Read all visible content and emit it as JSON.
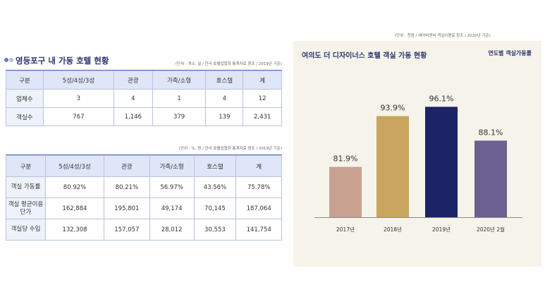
{
  "top_note": "(단위 : 천원 / 에어비앤비 객실이용료 참조 / 2020년 기준)",
  "left": {
    "title": "영등포구 내 가동 호텔 현황",
    "table1": {
      "note": "(단위 : 개소, 실 / 한국 호텔업협회 통계자료 참조 / 2019년 기준)",
      "headers": [
        "구분",
        "5성/4성/3성",
        "관광",
        "가족/소형",
        "호스텔",
        "계"
      ],
      "rows": [
        [
          "업체수",
          "3",
          "4",
          "1",
          "4",
          "12"
        ],
        [
          "객실수",
          "767",
          "1,146",
          "379",
          "139",
          "2,431"
        ]
      ]
    },
    "table2": {
      "note": "(단위 : %, 원 / 한국 호텔업협회 통계자료 참조 / 2019년 기준)",
      "headers": [
        "구분",
        "5성/4성/3성",
        "관광",
        "가족/소형",
        "호스텔",
        "계"
      ],
      "rows": [
        [
          "객실 가동률",
          "80.92%",
          "80.21%",
          "56.97%",
          "43.56%",
          "75.78%"
        ],
        [
          "객실 평균이용단가",
          "162,884",
          "195,801",
          "49,174",
          "70,145",
          "187,064"
        ],
        [
          "객실당 수입",
          "132,308",
          "157,057",
          "28,012",
          "30,553",
          "141,754"
        ]
      ]
    }
  },
  "chart_data": {
    "type": "bar",
    "title": "여의도 더 디자이너스 호텔 객실 가동 현황",
    "legend": "연도별 객실가동률",
    "categories": [
      "2017년",
      "2018년",
      "2019년",
      "2020년 2월"
    ],
    "values": [
      81.9,
      93.9,
      96.1,
      88.1
    ],
    "data_labels": [
      "81.9%",
      "93.9%",
      "96.1%",
      "88.1%"
    ],
    "colors": [
      "#c9a190",
      "#c9a560",
      "#1c2466",
      "#6b6090"
    ],
    "ylim": [
      70,
      100
    ],
    "grid": false
  }
}
